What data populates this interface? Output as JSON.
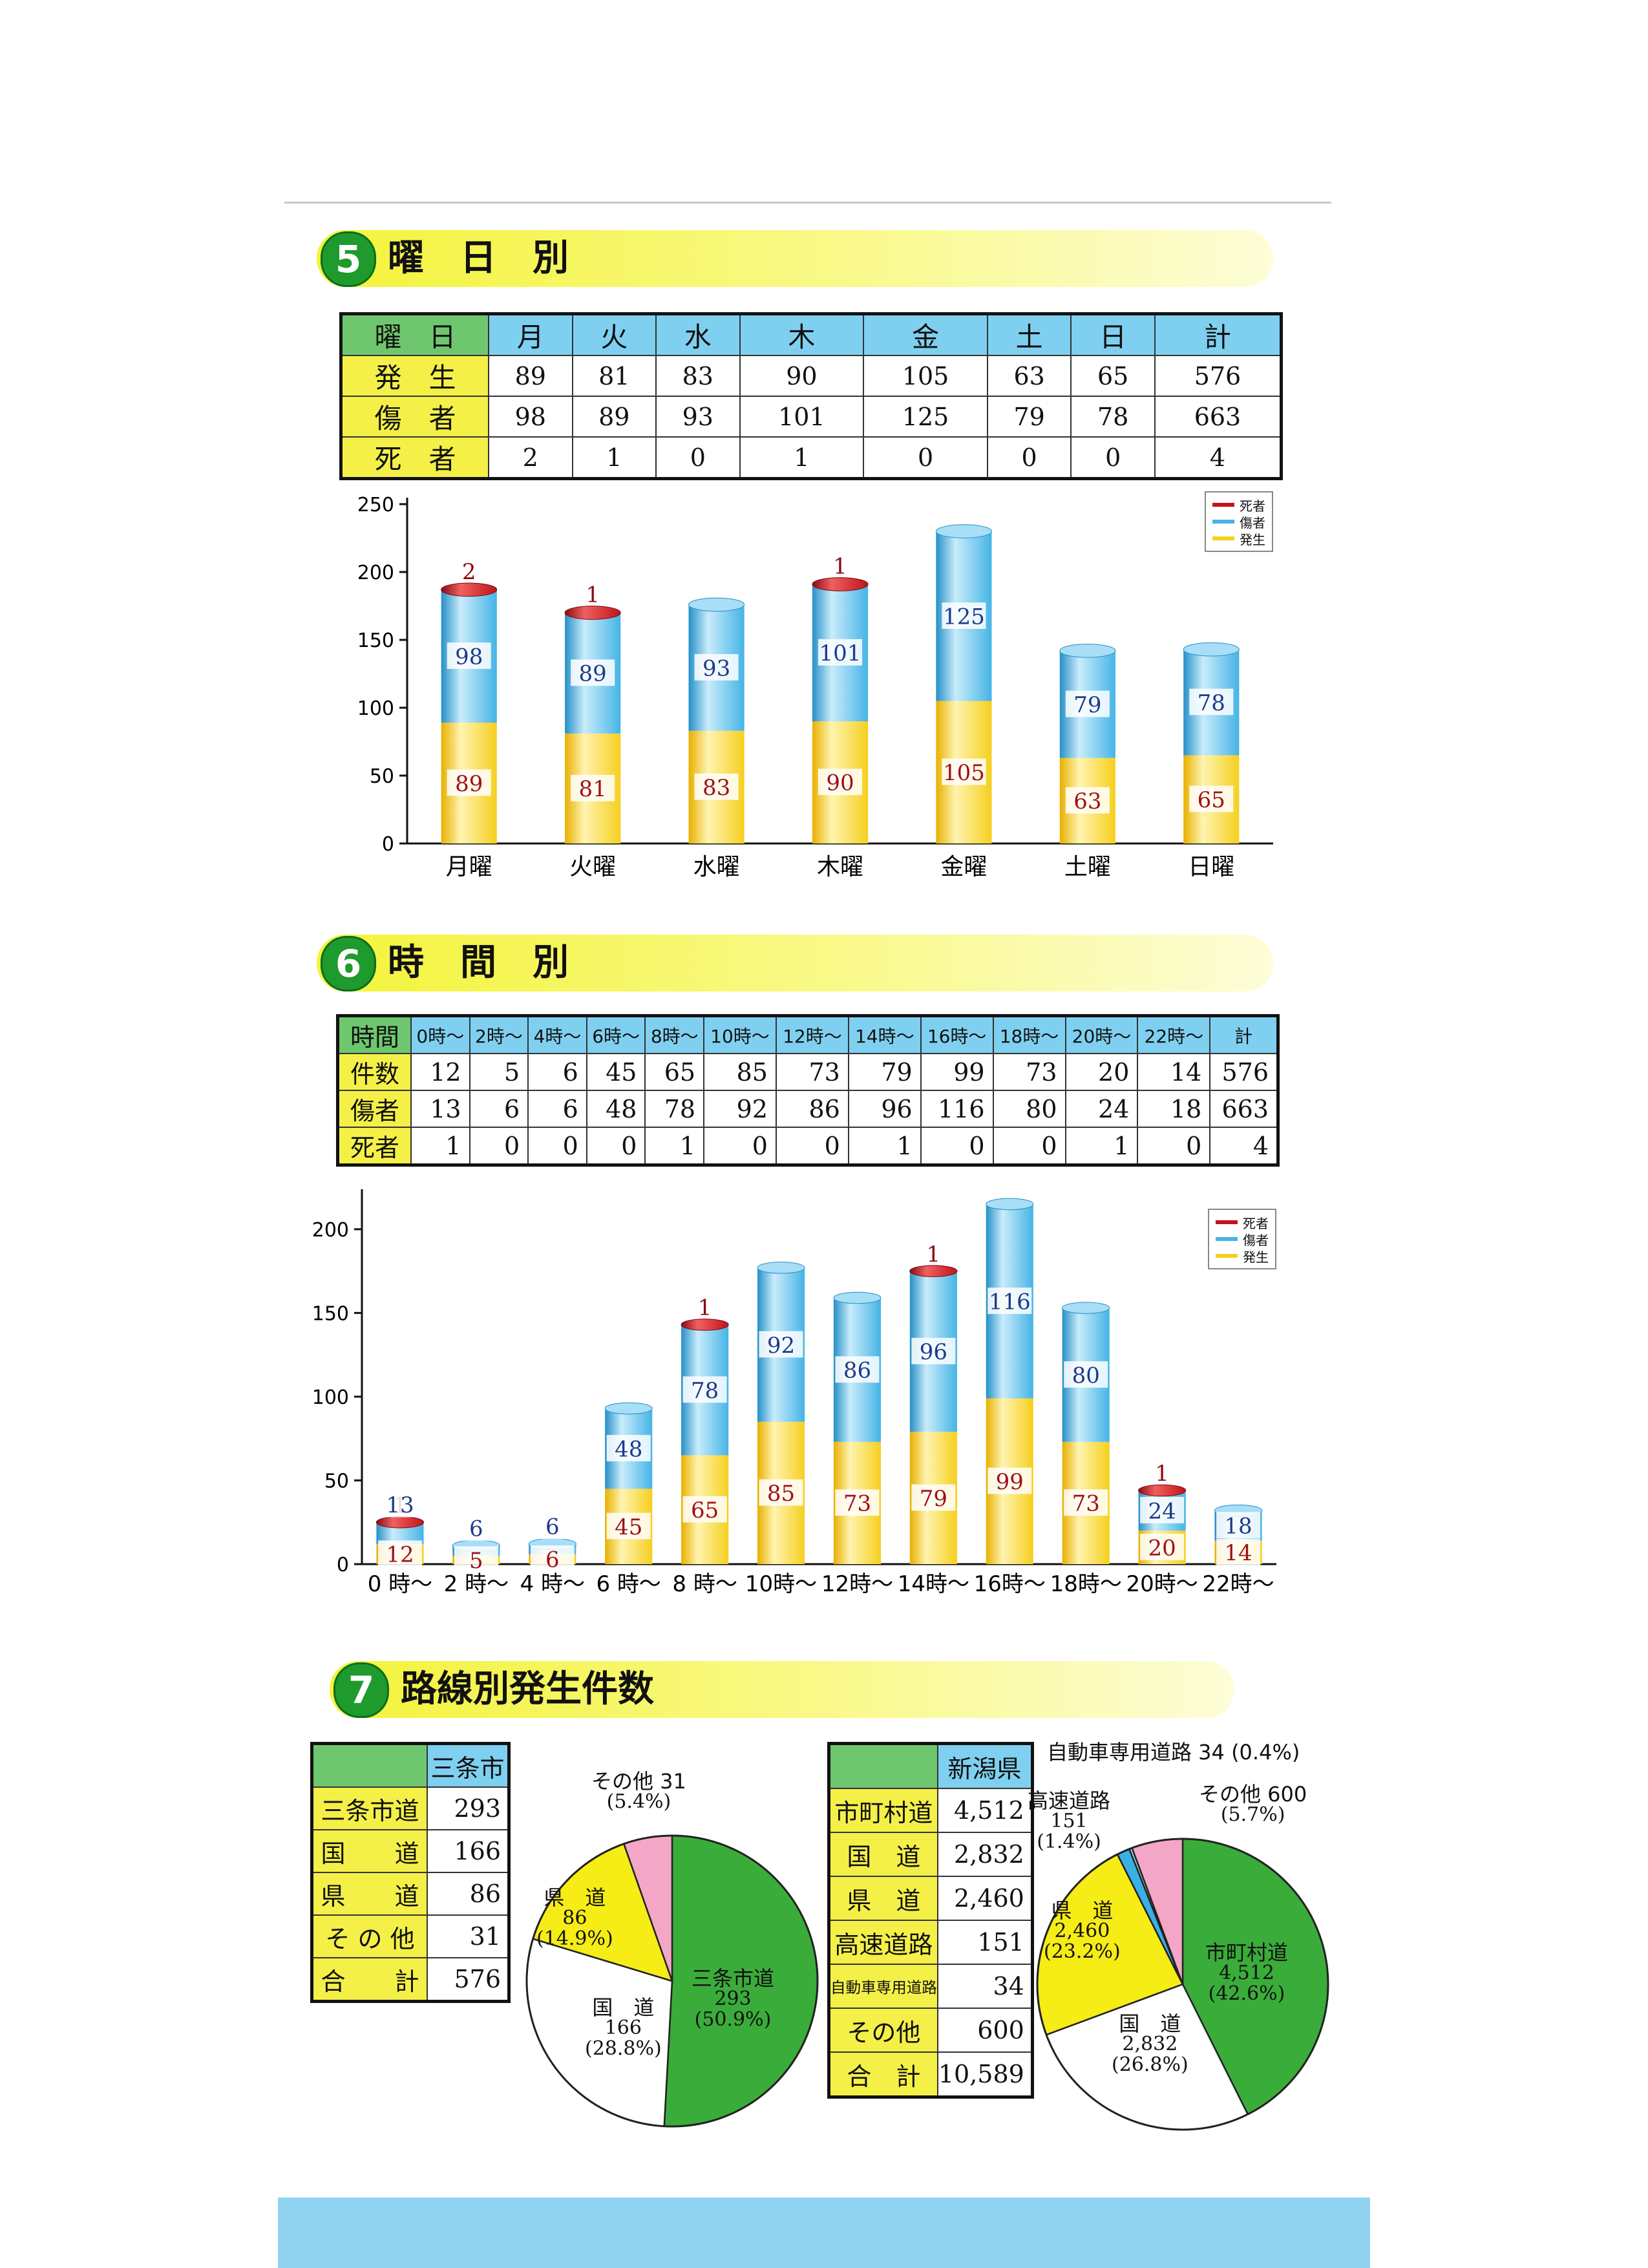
{
  "colors": {
    "occurrence": "#f6cf1e",
    "injured": "#45b4e6",
    "deaths": "#c0141b",
    "pie_green": "#3aac3a",
    "pie_white": "#ffffff",
    "pie_yellow": "#f6ec16",
    "pie_pink": "#f4a6c6",
    "pie_blue": "#3ab0e6",
    "pie_sky": "#9fdaf4"
  },
  "sections": {
    "s5": {
      "num": "5",
      "title": "曜　日　別"
    },
    "s6": {
      "num": "6",
      "title": "時　間　別"
    },
    "s7": {
      "num": "7",
      "title": "路線別発生件数"
    }
  },
  "legend": {
    "deaths": "死者",
    "injured": "傷者",
    "occurrence": "発生"
  },
  "weekday_table": {
    "corner": "曜　日",
    "columns": [
      "月",
      "火",
      "水",
      "木",
      "金",
      "土",
      "日",
      "計"
    ],
    "rows": [
      {
        "label": "発　生",
        "values": [
          "89",
          "81",
          "83",
          "90",
          "105",
          "63",
          "65",
          "576"
        ]
      },
      {
        "label": "傷　者",
        "values": [
          "98",
          "89",
          "93",
          "101",
          "125",
          "79",
          "78",
          "663"
        ]
      },
      {
        "label": "死　者",
        "values": [
          "2",
          "1",
          "0",
          "1",
          "0",
          "0",
          "0",
          "4"
        ]
      }
    ]
  },
  "hour_table": {
    "corner": "時間",
    "columns": [
      "0時〜",
      "2時〜",
      "4時〜",
      "6時〜",
      "8時〜",
      "10時〜",
      "12時〜",
      "14時〜",
      "16時〜",
      "18時〜",
      "20時〜",
      "22時〜",
      "計"
    ],
    "rows": [
      {
        "label": "件数",
        "values": [
          "12",
          "5",
          "6",
          "45",
          "65",
          "85",
          "73",
          "79",
          "99",
          "73",
          "20",
          "14",
          "576"
        ]
      },
      {
        "label": "傷者",
        "values": [
          "13",
          "6",
          "6",
          "48",
          "78",
          "92",
          "86",
          "96",
          "116",
          "80",
          "24",
          "18",
          "663"
        ]
      },
      {
        "label": "死者",
        "values": [
          "1",
          "0",
          "0",
          "0",
          "1",
          "0",
          "0",
          "1",
          "0",
          "0",
          "1",
          "0",
          "4"
        ]
      }
    ]
  },
  "sanjo_table": {
    "header": "三条市",
    "rows": [
      {
        "label": "三条市道",
        "value": "293"
      },
      {
        "label": "国　　道",
        "value": "166"
      },
      {
        "label": "県　　道",
        "value": "86"
      },
      {
        "label": "そ の 他",
        "value": "31"
      },
      {
        "label": "合　　計",
        "value": "576"
      }
    ]
  },
  "niigata_table": {
    "header": "新潟県",
    "rows": [
      {
        "label": "市町村道",
        "value": "4,512"
      },
      {
        "label": "国　道",
        "value": "2,832"
      },
      {
        "label": "県　道",
        "value": "2,460"
      },
      {
        "label": "高速道路",
        "value": "151"
      },
      {
        "label": "自動車専用道路",
        "value": "34"
      },
      {
        "label": "その他",
        "value": "600"
      },
      {
        "label": "合　計",
        "value": "10,589"
      }
    ]
  },
  "pie_labels": {
    "sanjo": [
      {
        "name": "三条市道",
        "value": "293",
        "pct": "(50.9%)"
      },
      {
        "name": "国　道",
        "value": "166",
        "pct": "(28.8%)"
      },
      {
        "name": "県　道",
        "value": "86",
        "pct": "(14.9%)"
      },
      {
        "name": "その他 31",
        "pct": "(5.4%)"
      }
    ],
    "niigata": [
      {
        "name": "市町村道",
        "value": "4,512",
        "pct": "(42.6%)"
      },
      {
        "name": "国　道",
        "value": "2,832",
        "pct": "(26.8%)"
      },
      {
        "name": "県　道",
        "value": "2,460",
        "pct": "(23.2%)"
      },
      {
        "name": "高速道路",
        "value": "151",
        "pct": "(1.4%)"
      },
      {
        "name": "自動車専用道路 34 (0.4%)"
      },
      {
        "name": "その他 600",
        "pct": "(5.7%)"
      }
    ]
  },
  "chart_data": [
    {
      "type": "bar",
      "stacked": true,
      "categories": [
        "月曜",
        "火曜",
        "水曜",
        "木曜",
        "金曜",
        "土曜",
        "日曜"
      ],
      "series": [
        {
          "name": "発生",
          "values": [
            89,
            81,
            83,
            90,
            105,
            63,
            65
          ]
        },
        {
          "name": "傷者",
          "values": [
            98,
            89,
            93,
            101,
            125,
            79,
            78
          ]
        },
        {
          "name": "死者",
          "values": [
            2,
            1,
            0,
            1,
            0,
            0,
            0
          ]
        }
      ],
      "yticks": [
        "0",
        "50",
        "100",
        "150",
        "200",
        "250"
      ],
      "ylim": [
        0,
        250
      ],
      "legend_position": "top-right"
    },
    {
      "type": "bar",
      "stacked": true,
      "categories": [
        "0 時〜",
        "2 時〜",
        "4 時〜",
        "6 時〜",
        "8 時〜",
        "10時〜",
        "12時〜",
        "14時〜",
        "16時〜",
        "18時〜",
        "20時〜",
        "22時〜"
      ],
      "series": [
        {
          "name": "発生",
          "values": [
            12,
            5,
            6,
            45,
            65,
            85,
            73,
            79,
            99,
            73,
            20,
            14
          ]
        },
        {
          "name": "傷者",
          "values": [
            13,
            6,
            6,
            48,
            78,
            92,
            86,
            96,
            116,
            80,
            24,
            18
          ]
        },
        {
          "name": "死者",
          "values": [
            1,
            0,
            0,
            0,
            1,
            0,
            0,
            1,
            0,
            0,
            1,
            0
          ]
        }
      ],
      "yticks": [
        "0",
        "50",
        "100",
        "150",
        "200"
      ],
      "ylim": [
        0,
        220
      ],
      "legend_position": "top-right"
    },
    {
      "type": "pie",
      "labels": [
        "三条市道",
        "国道",
        "県道",
        "その他"
      ],
      "values": [
        293,
        166,
        86,
        31
      ],
      "percent": [
        50.9,
        28.8,
        14.9,
        5.4
      ]
    },
    {
      "type": "pie",
      "labels": [
        "市町村道",
        "国道",
        "県道",
        "高速道路",
        "自動車専用道路",
        "その他"
      ],
      "values": [
        4512,
        2832,
        2460,
        151,
        34,
        600
      ],
      "percent": [
        42.6,
        26.8,
        23.2,
        1.4,
        0.4,
        5.7
      ]
    }
  ]
}
